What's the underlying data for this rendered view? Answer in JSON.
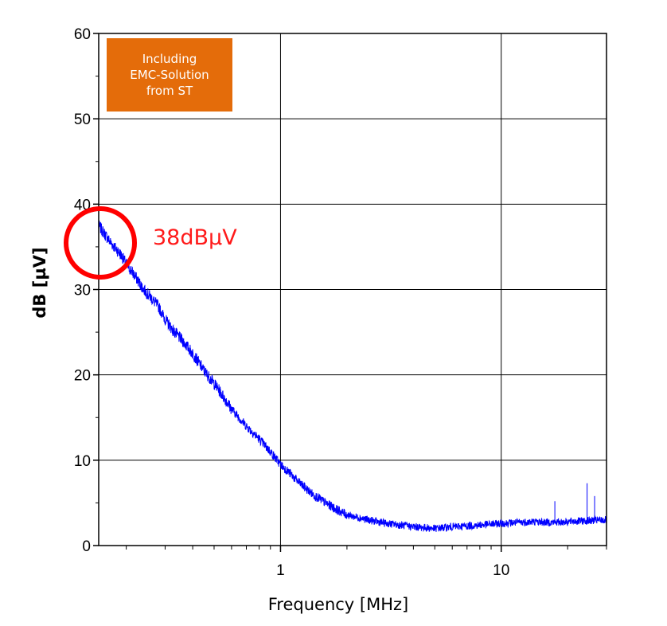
{
  "chart_data": {
    "type": "line",
    "xlabel": "Frequency [MHz]",
    "ylabel": "dB [µV]",
    "x_scale": "log",
    "xlim": [
      0.15,
      30
    ],
    "ylim": [
      0,
      60
    ],
    "grid": true,
    "x_ticks": [
      {
        "value": 1,
        "label": "1"
      },
      {
        "value": 10,
        "label": "10"
      }
    ],
    "y_ticks": [
      {
        "value": 0,
        "label": "0"
      },
      {
        "value": 10,
        "label": "10"
      },
      {
        "value": 20,
        "label": "20"
      },
      {
        "value": 30,
        "label": "30"
      },
      {
        "value": 40,
        "label": "40"
      },
      {
        "value": 50,
        "label": "50"
      },
      {
        "value": 60,
        "label": "60"
      }
    ],
    "series": [
      {
        "color": "#0000FF",
        "x": [
          0.15,
          0.17,
          0.19,
          0.2,
          0.22,
          0.24,
          0.26,
          0.28,
          0.3,
          0.33,
          0.36,
          0.4,
          0.45,
          0.5,
          0.55,
          0.6,
          0.7,
          0.8,
          0.9,
          1.0,
          1.1,
          1.2,
          1.4,
          1.6,
          1.8,
          2.0,
          2.5,
          3.0,
          3.5,
          4.0,
          4.5,
          5.0,
          6.0,
          7.0,
          8.0,
          9.0,
          10.0,
          12.0,
          14.0,
          17.0,
          20.0,
          24.0,
          30.0
        ],
        "y": [
          37.5,
          35.5,
          34.0,
          33.0,
          31.5,
          30.0,
          29.0,
          28.0,
          26.5,
          25.0,
          24.0,
          22.5,
          20.5,
          19.0,
          17.5,
          16.0,
          14.0,
          12.5,
          11.0,
          9.5,
          8.5,
          7.5,
          6.0,
          5.0,
          4.2,
          3.6,
          3.0,
          2.6,
          2.4,
          2.2,
          2.1,
          2.0,
          2.2,
          2.3,
          2.4,
          2.5,
          2.6,
          2.7,
          2.8,
          2.7,
          2.8,
          2.9,
          3.0
        ]
      }
    ],
    "spikes": [
      {
        "x": 17.5,
        "y": 5.2
      },
      {
        "x": 24.5,
        "y": 7.3
      },
      {
        "x": 26.5,
        "y": 5.8
      }
    ],
    "annotations": {
      "badge_lines": [
        "Including",
        "EMC-Solution",
        "from ST"
      ],
      "callout_text": "38dBµV",
      "badge_color": "#E46C0A",
      "callout_color": "#FF1A1A"
    }
  }
}
